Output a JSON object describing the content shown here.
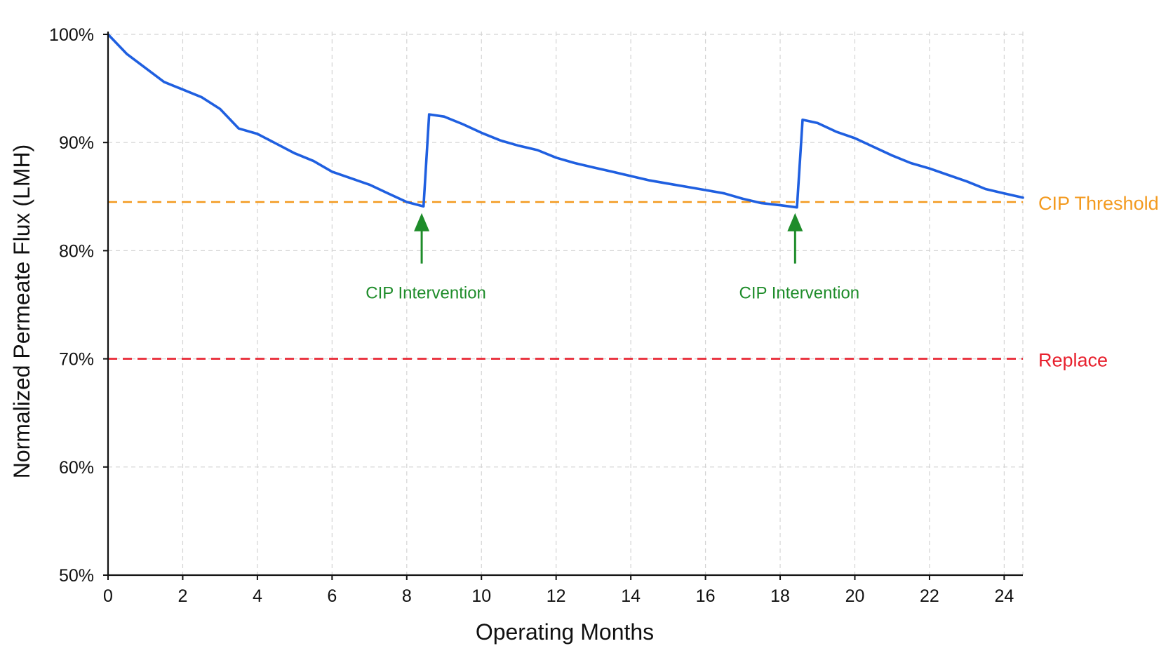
{
  "chart_data": {
    "type": "line",
    "title": "",
    "xlabel": "Operating Months",
    "ylabel": "Normalized Permeate Flux (LMH)",
    "xlim": [
      0,
      24.5
    ],
    "ylim": [
      50,
      100
    ],
    "x_ticks": [
      0,
      2,
      4,
      6,
      8,
      10,
      12,
      14,
      16,
      18,
      20,
      22,
      24
    ],
    "y_ticks": [
      50,
      60,
      70,
      80,
      90,
      100
    ],
    "y_tick_labels": [
      "50%",
      "60%",
      "70%",
      "80%",
      "90%",
      "100%"
    ],
    "grid": true,
    "series": [
      {
        "color": "#1f5fe0",
        "x": [
          0,
          0.5,
          1,
          1.5,
          2,
          2.5,
          3,
          3.5,
          4,
          4.5,
          5,
          5.5,
          6,
          6.5,
          7,
          7.5,
          8,
          8.45,
          8.6,
          9,
          9.5,
          10,
          10.5,
          11,
          11.5,
          12,
          12.5,
          13,
          13.5,
          14,
          14.5,
          15,
          15.5,
          16,
          16.5,
          17,
          17.5,
          18,
          18.45,
          18.6,
          19,
          19.5,
          20,
          20.5,
          21,
          21.5,
          22,
          22.5,
          23,
          23.5,
          24,
          24.5
        ],
        "y": [
          100,
          98.2,
          96.9,
          95.6,
          94.9,
          94.2,
          93.1,
          91.3,
          90.8,
          89.9,
          89.0,
          88.3,
          87.3,
          86.7,
          86.1,
          85.3,
          84.5,
          84.1,
          92.6,
          92.4,
          91.7,
          90.9,
          90.2,
          89.7,
          89.3,
          88.6,
          88.1,
          87.7,
          87.3,
          86.9,
          86.5,
          86.2,
          85.9,
          85.6,
          85.3,
          84.8,
          84.4,
          84.2,
          84.0,
          92.1,
          91.8,
          91.0,
          90.4,
          89.6,
          88.8,
          88.1,
          87.6,
          87.0,
          86.4,
          85.7,
          85.3,
          84.9
        ]
      }
    ],
    "reference_lines": [
      {
        "label": "CIP Threshold",
        "y": 84.5,
        "color": "#f39a1f"
      },
      {
        "label": "Replace",
        "y": 70,
        "color": "#e8212e"
      }
    ],
    "annotations": [
      {
        "text": "CIP Intervention",
        "x": 8.4,
        "y": 84,
        "color": "#1e8c2a"
      },
      {
        "text": "CIP Intervention",
        "x": 18.4,
        "y": 84,
        "color": "#1e8c2a"
      }
    ]
  }
}
